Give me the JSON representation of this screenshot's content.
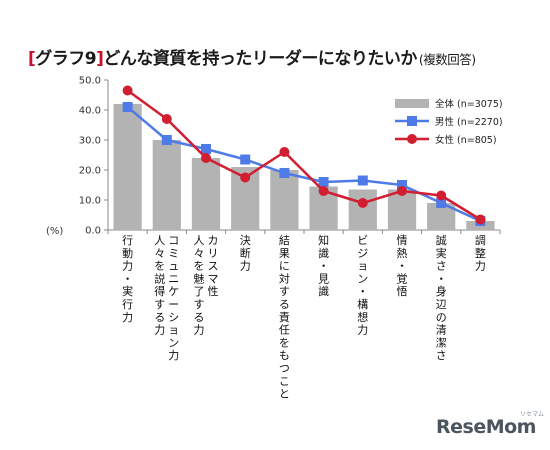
{
  "title": {
    "bracket_open": "[",
    "main": "グラフ9",
    "bracket_close": "]",
    "text": "どんな資質を持ったリーダーになりたいか",
    "sub": "(複数回答)"
  },
  "watermark": {
    "text": "ReseMom",
    "sub": "リセマム"
  },
  "colors": {
    "bar": "#b3b3b3",
    "male": "#4f7be8",
    "female": "#d11f31"
  },
  "chart_data": {
    "type": "bar",
    "title": "どんな資質を持ったリーダーになりたいか(複数回答)",
    "ylabel": "(%)",
    "ylim": [
      0,
      50
    ],
    "yticks": [
      "0.0",
      "10.0",
      "20.0",
      "30.0",
      "40.0",
      "50.0"
    ],
    "grid": false,
    "legend_position": "top-right",
    "categories": [
      [
        "行動力・実行力"
      ],
      [
        "人々を説得する力",
        "コミュニケーション力"
      ],
      [
        "人々を魅了する力",
        "カリスマ性"
      ],
      [
        "決断力"
      ],
      [
        "結果に対する責任をもつこと"
      ],
      [
        "知識・見識"
      ],
      [
        "ビジョン・構想力"
      ],
      [
        "情熱・覚悟"
      ],
      [
        "誠実さ・身辺の清潔さ"
      ],
      [
        "調整力"
      ]
    ],
    "series": [
      {
        "name": "全体 (n=3075)",
        "kind": "bar",
        "values": [
          42.0,
          30.0,
          24.0,
          21.0,
          20.0,
          14.5,
          13.5,
          13.5,
          9.0,
          3.0
        ]
      },
      {
        "name": "男性 (n=2270)",
        "kind": "line",
        "marker": "square",
        "values": [
          41.0,
          30.0,
          27.0,
          23.5,
          19.0,
          16.0,
          16.5,
          15.0,
          9.0,
          3.0
        ]
      },
      {
        "name": "女性 (n=805)",
        "kind": "line",
        "marker": "circle",
        "values": [
          46.5,
          37.0,
          24.0,
          17.5,
          26.0,
          13.0,
          9.0,
          13.0,
          11.5,
          3.5
        ]
      }
    ]
  }
}
